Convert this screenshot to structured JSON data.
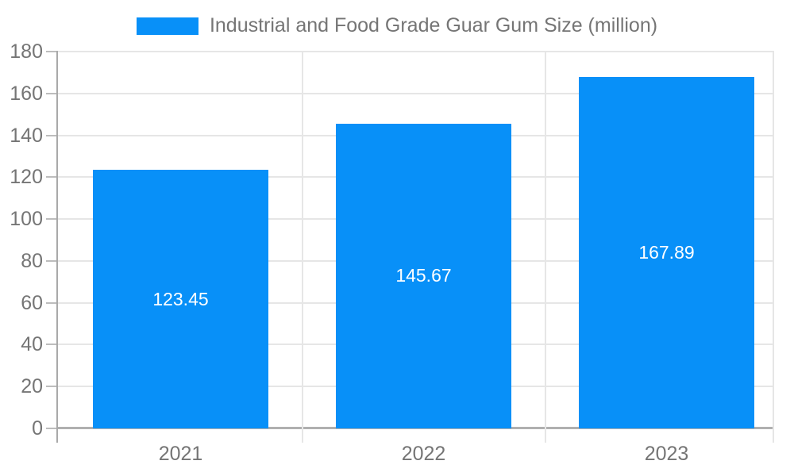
{
  "chart_data": {
    "type": "bar",
    "title": "Industrial and Food Grade Guar Gum Size (million)",
    "categories": [
      "2021",
      "2022",
      "2023"
    ],
    "values": [
      123.45,
      145.67,
      167.89
    ],
    "value_labels": [
      "123.45",
      "145.67",
      "167.89"
    ],
    "xlabel": "",
    "ylabel": "",
    "ylim": [
      0,
      180
    ],
    "yticks": [
      0,
      20,
      40,
      60,
      80,
      100,
      120,
      140,
      160,
      180
    ],
    "grid": true,
    "legend_position": "top-center",
    "colors": {
      "bar": "#0890f8",
      "grid_line": "#e6e6e6",
      "axis_text": "#757575",
      "axis_line_x": "#b0b0b0",
      "axis_line_y": "#a9a9a9",
      "tick_line": "#bdbdbd",
      "value_label": "#ffffff",
      "background": "#ffffff"
    }
  }
}
